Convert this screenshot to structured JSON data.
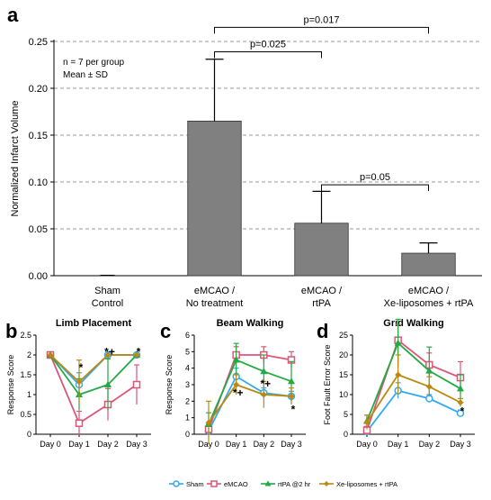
{
  "figure": {
    "colors": {
      "bar_fill": "#808080",
      "grid": "#9a9a9a",
      "sham": "#33aaee",
      "emcao": "#dd5577",
      "rtpa": "#22aa44",
      "xe": "#bb8811"
    },
    "legend": [
      {
        "key": "sham",
        "label": "Sham",
        "marker": "circle-open"
      },
      {
        "key": "emcao",
        "label": "eMCAO",
        "marker": "square-open"
      },
      {
        "key": "rtpa",
        "label": "rtPA @2 hr",
        "marker": "triangle"
      },
      {
        "key": "xe",
        "label": "Xe-liposomes + rtPA",
        "marker": "diamond"
      }
    ]
  },
  "chart_data": [
    {
      "panel": "a",
      "type": "bar",
      "title": "",
      "ylabel": "Normalized Infarct Volume",
      "ylim": [
        0,
        0.25
      ],
      "yticks": [
        "0.00",
        "0.05",
        "0.10",
        "0.15",
        "0.20",
        "0.25"
      ],
      "ytick_values": [
        0,
        0.05,
        0.1,
        0.15,
        0.2,
        0.25
      ],
      "grid": true,
      "categories": [
        [
          "Sham",
          "Control"
        ],
        [
          "eMCAO /",
          "No treatment"
        ],
        [
          "eMCAO /",
          "rtPA"
        ],
        [
          "eMCAO /",
          "Xe-liposomes + rtPA"
        ]
      ],
      "values": [
        0.0,
        0.165,
        0.056,
        0.024
      ],
      "errors": [
        0.0,
        0.066,
        0.034,
        0.011
      ],
      "annotation_lines": [
        "n = 7 per group",
        "Mean ± SD"
      ],
      "comparisons": [
        {
          "from": 1,
          "to": 3,
          "label": "p=0.017",
          "level": 0.265
        },
        {
          "from": 1,
          "to": 2,
          "label": "p=0.025",
          "level": 0.239
        },
        {
          "from": 2,
          "to": 3,
          "label": "p=0.05",
          "level": 0.097
        }
      ]
    },
    {
      "panel": "b",
      "type": "line",
      "title": "Limb Placement",
      "ylabel": "Response Score",
      "ylim": [
        0,
        2.5
      ],
      "yticks": [
        "0",
        "0.5",
        "1",
        "1.5",
        "2",
        "2.5"
      ],
      "ytick_values": [
        0,
        0.5,
        1,
        1.5,
        2,
        2.5
      ],
      "categories": [
        "Day 0",
        "Day 1",
        "Day 2",
        "Day 3"
      ],
      "series": [
        {
          "key": "sham",
          "values": [
            2,
            1.25,
            2,
            2
          ],
          "errors": [
            0,
            0.3,
            0,
            0
          ]
        },
        {
          "key": "emcao",
          "values": [
            2,
            0.28,
            0.75,
            1.25
          ],
          "errors": [
            0,
            0.3,
            0.4,
            0.5
          ]
        },
        {
          "key": "rtpa",
          "values": [
            2,
            1.0,
            1.25,
            2
          ],
          "errors": [
            0,
            0.4,
            0.65,
            0
          ]
        },
        {
          "key": "xe",
          "values": [
            2,
            1.32,
            2,
            2
          ],
          "errors": [
            0,
            0.55,
            0,
            0
          ]
        }
      ],
      "marks": [
        {
          "x_index": 1,
          "y": 1.68,
          "text": "*"
        },
        {
          "x_index": 2,
          "y": 2.08,
          "text": "*+"
        },
        {
          "x_index": 3,
          "y": 2.08,
          "text": "*"
        }
      ]
    },
    {
      "panel": "c",
      "type": "line",
      "title": "Beam Walking",
      "ylabel": "Response Score",
      "ylim": [
        0,
        6
      ],
      "yticks": [
        "0",
        "1",
        "2",
        "3",
        "4",
        "5",
        "6"
      ],
      "ytick_values": [
        0,
        1,
        2,
        3,
        4,
        5,
        6
      ],
      "categories": [
        "Day 0",
        "Day 1",
        "Day 2",
        "Day 3"
      ],
      "series": [
        {
          "key": "sham",
          "values": [
            0.2,
            3.5,
            2.5,
            2.3
          ],
          "errors": [
            0.2,
            0.5,
            0.3,
            0.3
          ]
        },
        {
          "key": "emcao",
          "values": [
            0.3,
            4.8,
            4.8,
            4.5
          ],
          "errors": [
            0.3,
            0.5,
            0.5,
            0.5
          ]
        },
        {
          "key": "rtpa",
          "values": [
            0.6,
            4.5,
            3.8,
            3.2
          ],
          "errors": [
            0.7,
            1.0,
            1.0,
            1.2
          ]
        },
        {
          "key": "xe",
          "values": [
            0.7,
            3.0,
            2.4,
            2.3
          ],
          "errors": [
            1.3,
            0.6,
            0.8,
            0.5
          ]
        }
      ],
      "marks": [
        {
          "x_index": 1,
          "y": 2.5,
          "text": "*+"
        },
        {
          "x_index": 2,
          "y": 3.05,
          "text": "*+"
        },
        {
          "x_index": 3,
          "y": 1.5,
          "text": "*"
        }
      ]
    },
    {
      "panel": "d",
      "type": "line",
      "title": "Grid Walking",
      "ylabel": "Foot Fault Error Score",
      "ylim": [
        0,
        25
      ],
      "yticks": [
        "0",
        "5",
        "10",
        "15",
        "20",
        "25"
      ],
      "ytick_values": [
        0,
        5,
        10,
        15,
        20,
        25
      ],
      "categories": [
        "Day 0",
        "Day 1",
        "Day 2",
        "Day 3"
      ],
      "series": [
        {
          "key": "sham",
          "values": [
            0.7,
            11,
            9,
            5.3
          ],
          "errors": [
            0.7,
            2.0,
            1.0,
            0.8
          ]
        },
        {
          "key": "emcao",
          "values": [
            1.0,
            23.7,
            17.5,
            14.3
          ],
          "errors": [
            1.0,
            4.0,
            3.0,
            4.0
          ]
        },
        {
          "key": "rtpa",
          "values": [
            3.3,
            23.0,
            16.0,
            11.5
          ],
          "errors": [
            1.5,
            6.0,
            6.0,
            3.5
          ]
        },
        {
          "key": "xe",
          "values": [
            3.0,
            15.0,
            12.0,
            8.0
          ],
          "errors": [
            1.8,
            5.0,
            2.5,
            1.0
          ]
        }
      ],
      "marks": [
        {
          "x_index": 3,
          "y": 5.8,
          "text": "*"
        }
      ]
    }
  ]
}
